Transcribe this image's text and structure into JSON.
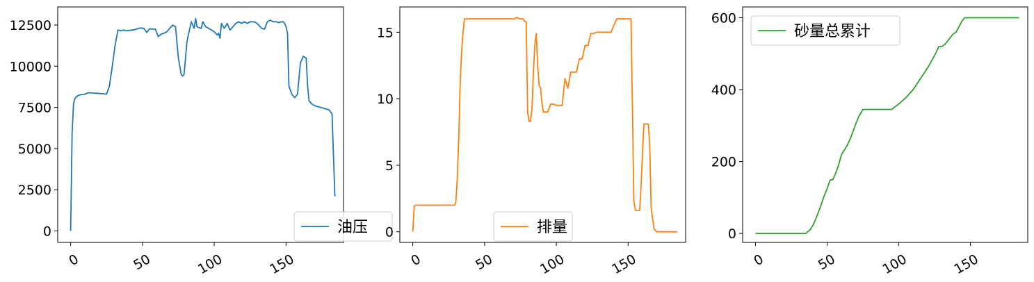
{
  "chart_data": [
    {
      "type": "line",
      "legend_loc": "lower right",
      "color": "#1f77b4",
      "xlim": [
        -9,
        190
      ],
      "ylim": [
        -700,
        13600
      ],
      "xticks": [
        0,
        50,
        100,
        150
      ],
      "xtick_labels": [
        "0",
        "50",
        "100",
        "150"
      ],
      "yticks": [
        0,
        2500,
        5000,
        7500,
        10000,
        12500
      ],
      "ytick_labels": [
        "0",
        "2500",
        "5000",
        "7500",
        "10000",
        "12500"
      ],
      "series": [
        {
          "name": "油压",
          "x": [
            0,
            1,
            2,
            3,
            4,
            6,
            8,
            10,
            12,
            14,
            16,
            18,
            20,
            22,
            25,
            27,
            29,
            31,
            33,
            35,
            37,
            39,
            41,
            43,
            45,
            47,
            49,
            51,
            53,
            55,
            57,
            59,
            61,
            63,
            65,
            67,
            69,
            71,
            73,
            75,
            77,
            78,
            79,
            80,
            81,
            82,
            84,
            86,
            87,
            88,
            89,
            91,
            92,
            94,
            96,
            98,
            100,
            102,
            103,
            104,
            105,
            107,
            109,
            111,
            113,
            115,
            117,
            119,
            121,
            123,
            125,
            127,
            129,
            131,
            133,
            135,
            137,
            139,
            141,
            143,
            145,
            147,
            148,
            149,
            150,
            151,
            152,
            154,
            156,
            158,
            160,
            162,
            164,
            165,
            166,
            168,
            170,
            172,
            174,
            176,
            178,
            180,
            182,
            184
          ],
          "y": [
            0,
            5900,
            7700,
            8050,
            8150,
            8250,
            8280,
            8300,
            8380,
            8380,
            8370,
            8360,
            8340,
            8330,
            8300,
            8800,
            10000,
            11300,
            12200,
            12150,
            12200,
            12150,
            12180,
            12200,
            12230,
            12300,
            12320,
            12300,
            12050,
            12280,
            12250,
            12250,
            11800,
            11950,
            12000,
            12100,
            12300,
            12500,
            12400,
            10500,
            9500,
            9400,
            9500,
            10500,
            11500,
            11900,
            12700,
            12300,
            12900,
            12400,
            12350,
            12300,
            12700,
            12400,
            12300,
            12200,
            12100,
            11900,
            12000,
            11700,
            12600,
            12300,
            12600,
            12200,
            12400,
            12600,
            12700,
            12600,
            12700,
            12600,
            12700,
            12700,
            12650,
            12500,
            12300,
            12250,
            12700,
            12800,
            12700,
            12700,
            12650,
            12700,
            12700,
            12600,
            12400,
            12000,
            8800,
            8300,
            8100,
            8300,
            10200,
            10600,
            10500,
            8800,
            7900,
            7700,
            7600,
            7550,
            7500,
            7450,
            7400,
            7350,
            7100,
            2100
          ]
        }
      ]
    },
    {
      "type": "line",
      "legend_loc": "lower center",
      "color": "#ff7f0e",
      "xlim": [
        -9,
        190
      ],
      "ylim": [
        -0.8,
        16.9
      ],
      "xticks": [
        0,
        50,
        100,
        150
      ],
      "xtick_labels": [
        "0",
        "50",
        "100",
        "150"
      ],
      "yticks": [
        0,
        5,
        10,
        15
      ],
      "ytick_labels": [
        "0",
        "5",
        "10",
        "15"
      ],
      "series": [
        {
          "name": "排量",
          "x": [
            0,
            1,
            2,
            4,
            6,
            8,
            10,
            15,
            20,
            25,
            27,
            28,
            29,
            30,
            31,
            32,
            33,
            34,
            35,
            36,
            37,
            40,
            50,
            60,
            65,
            70,
            71,
            72,
            73,
            74,
            75,
            76,
            77,
            78,
            79,
            80,
            81,
            82,
            83,
            84,
            85,
            86,
            87,
            88,
            89,
            90,
            91,
            92,
            94,
            96,
            98,
            100,
            101,
            102,
            103,
            104,
            106,
            108,
            110,
            112,
            114,
            116,
            118,
            120,
            122,
            124,
            126,
            128,
            130,
            132,
            134,
            136,
            138,
            140,
            142,
            144,
            146,
            148,
            150,
            151,
            152,
            154,
            155,
            156,
            157,
            158,
            159,
            160,
            161,
            162,
            163,
            164,
            165,
            166,
            168,
            170,
            172,
            174,
            176,
            178,
            180,
            182,
            184
          ],
          "y": [
            0,
            1.95,
            2.0,
            2.0,
            2.0,
            2.0,
            2.0,
            2.0,
            2.0,
            2.0,
            2.0,
            2.0,
            2.0,
            2.2,
            4.0,
            7.0,
            11.0,
            13.5,
            15.0,
            16.0,
            16.0,
            16.0,
            16.0,
            16.0,
            16.0,
            16.0,
            16.0,
            16.1,
            16.1,
            16.0,
            16.0,
            16.0,
            16.0,
            15.8,
            15.8,
            9.0,
            8.3,
            8.3,
            9.2,
            12.0,
            14.0,
            14.9,
            12.5,
            11.0,
            10.8,
            9.6,
            9.0,
            9.0,
            9.0,
            9.6,
            9.6,
            9.5,
            9.5,
            9.5,
            9.5,
            9.5,
            11.5,
            10.8,
            12.0,
            12.0,
            12.0,
            13.0,
            13.0,
            14.0,
            14.0,
            14.9,
            14.9,
            15.0,
            15.0,
            15.0,
            15.0,
            15.0,
            15.0,
            15.5,
            16.0,
            16.0,
            16.0,
            16.0,
            16.0,
            16.0,
            16.0,
            2.3,
            1.6,
            1.6,
            1.6,
            1.6,
            3.5,
            6.0,
            8.1,
            8.1,
            8.1,
            8.1,
            6.5,
            1.8,
            0.2,
            0.0,
            0.0,
            0.0,
            0.0,
            0.0,
            0.0,
            0.0,
            0.0
          ]
        }
      ]
    },
    {
      "type": "line",
      "legend_loc": "upper left",
      "color": "#2ca02c",
      "xlim": [
        -9,
        190
      ],
      "ylim": [
        -25,
        630
      ],
      "xticks": [
        0,
        50,
        100,
        150
      ],
      "xtick_labels": [
        "0",
        "50",
        "100",
        "150"
      ],
      "yticks": [
        0,
        200,
        400,
        600
      ],
      "ytick_labels": [
        "0",
        "200",
        "400",
        "600"
      ],
      "series": [
        {
          "name": "砂量总累计",
          "x": [
            0,
            10,
            20,
            30,
            34,
            35,
            36,
            38,
            40,
            42,
            44,
            46,
            48,
            50,
            52,
            54,
            56,
            58,
            60,
            62,
            64,
            66,
            68,
            70,
            72,
            75,
            80,
            85,
            90,
            95,
            100,
            105,
            110,
            115,
            120,
            125,
            128,
            130,
            132,
            135,
            138,
            140,
            142,
            144,
            146,
            150,
            160,
            170,
            180,
            184
          ],
          "y": [
            0,
            0,
            0,
            0,
            0,
            0,
            3,
            10,
            22,
            40,
            60,
            82,
            105,
            125,
            148,
            150,
            168,
            190,
            220,
            232,
            245,
            262,
            283,
            305,
            325,
            345,
            345,
            345,
            345,
            345,
            360,
            378,
            400,
            430,
            460,
            495,
            520,
            520,
            525,
            540,
            555,
            560,
            575,
            590,
            600,
            600,
            600,
            600,
            600,
            600
          ]
        }
      ]
    }
  ]
}
